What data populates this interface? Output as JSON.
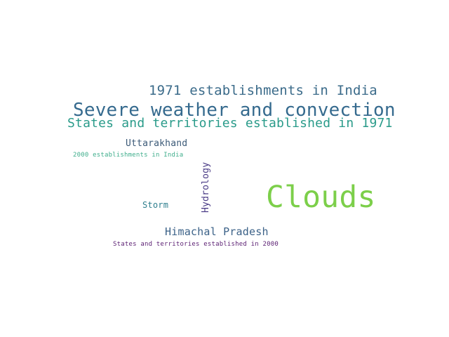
{
  "word_cloud": {
    "words": [
      {
        "text": "1971 establishments in India",
        "color": "#3b6b8a"
      },
      {
        "text": "Severe weather and convection",
        "color": "#356a8e"
      },
      {
        "text": "States and territories established in 1971",
        "color": "#2a9b8a"
      },
      {
        "text": "Uttarakhand",
        "color": "#3c5a78"
      },
      {
        "text": "2000 establishments in India",
        "color": "#3fae8c"
      },
      {
        "text": "Hydrology",
        "color": "#4a3b86"
      },
      {
        "text": "Clouds",
        "color": "#7ccf4a"
      },
      {
        "text": "Storm",
        "color": "#2f7f8e"
      },
      {
        "text": "Himachal Pradesh",
        "color": "#3c6288"
      },
      {
        "text": "States and territories established in 2000",
        "color": "#5a1e72"
      }
    ]
  }
}
